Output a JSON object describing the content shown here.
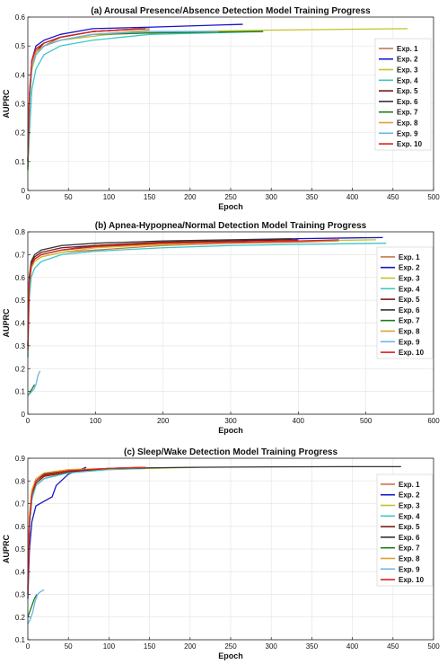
{
  "colors": {
    "Exp. 1": "#C8764A",
    "Exp. 2": "#1515C8",
    "Exp. 3": "#C4C22A",
    "Exp. 4": "#3CC8C8",
    "Exp. 5": "#7A1A1A",
    "Exp. 6": "#333333",
    "Exp. 7": "#1E7A1E",
    "Exp. 8": "#E0A030",
    "Exp. 9": "#6AB4E8",
    "Exp. 10": "#E01E1E"
  },
  "chart_data": [
    {
      "type": "line",
      "title": "(a) Arousal Presence/Absence Detection Model Training Progress",
      "xlabel": "Epoch",
      "ylabel": "AUPRC",
      "xlim": [
        0,
        500
      ],
      "ylim": [
        0,
        0.6
      ],
      "xticks": [
        0,
        50,
        100,
        150,
        200,
        250,
        300,
        350,
        400,
        450,
        500
      ],
      "yticks": [
        0,
        0.1,
        0.2,
        0.3,
        0.4,
        0.5,
        0.6
      ],
      "grid": true,
      "legend": "top-right",
      "series": [
        {
          "name": "Exp. 1",
          "x": [
            0,
            2,
            5,
            10,
            20,
            40,
            80,
            150
          ],
          "y": [
            0.08,
            0.3,
            0.42,
            0.47,
            0.5,
            0.53,
            0.55,
            0.56
          ]
        },
        {
          "name": "Exp. 2",
          "x": [
            0,
            2,
            5,
            10,
            20,
            40,
            80,
            150,
            265
          ],
          "y": [
            0.1,
            0.32,
            0.45,
            0.5,
            0.52,
            0.54,
            0.56,
            0.565,
            0.575
          ]
        },
        {
          "name": "Exp. 3",
          "x": [
            0,
            2,
            5,
            10,
            20,
            40,
            100,
            200,
            300,
            468
          ],
          "y": [
            0.08,
            0.3,
            0.42,
            0.47,
            0.5,
            0.52,
            0.54,
            0.55,
            0.555,
            0.56
          ]
        },
        {
          "name": "Exp. 4",
          "x": [
            0,
            2,
            5,
            10,
            20,
            40,
            80,
            150,
            290
          ],
          "y": [
            0.08,
            0.2,
            0.35,
            0.42,
            0.47,
            0.5,
            0.52,
            0.54,
            0.55
          ]
        },
        {
          "name": "Exp. 5",
          "x": [
            0,
            2,
            5,
            10,
            20,
            40,
            80,
            145
          ],
          "y": [
            0.1,
            0.33,
            0.44,
            0.48,
            0.51,
            0.53,
            0.55,
            0.56
          ]
        },
        {
          "name": "Exp. 6",
          "x": [
            0,
            2,
            5,
            10,
            20,
            40,
            80,
            140
          ],
          "y": [
            0.1,
            0.33,
            0.45,
            0.49,
            0.51,
            0.53,
            0.55,
            0.56
          ]
        },
        {
          "name": "Exp. 7",
          "x": [
            0,
            2,
            5,
            10,
            20,
            40,
            80,
            150,
            290
          ],
          "y": [
            0.07,
            0.3,
            0.44,
            0.48,
            0.5,
            0.52,
            0.54,
            0.545,
            0.55
          ]
        },
        {
          "name": "Exp. 8",
          "x": [
            0,
            2,
            5,
            10,
            20,
            40,
            80,
            150
          ],
          "y": [
            0.1,
            0.32,
            0.44,
            0.48,
            0.5,
            0.52,
            0.54,
            0.555
          ]
        },
        {
          "name": "Exp. 9",
          "x": [
            0,
            2,
            5,
            10,
            20,
            40,
            80,
            150,
            235
          ],
          "y": [
            0.1,
            0.3,
            0.43,
            0.47,
            0.5,
            0.52,
            0.54,
            0.55,
            0.55
          ]
        },
        {
          "name": "Exp. 10",
          "x": [
            0,
            2,
            5,
            10,
            20,
            40,
            80,
            140
          ],
          "y": [
            0.1,
            0.34,
            0.45,
            0.49,
            0.51,
            0.53,
            0.55,
            0.56
          ]
        }
      ]
    },
    {
      "type": "line",
      "title": "(b) Apnea-Hypopnea/Normal Detection Model Training Progress",
      "xlabel": "Epoch",
      "ylabel": "AUPRC",
      "xlim": [
        0,
        600
      ],
      "ylim": [
        0,
        0.8
      ],
      "xticks": [
        0,
        100,
        200,
        300,
        400,
        500,
        600
      ],
      "yticks": [
        0,
        0.1,
        0.2,
        0.3,
        0.4,
        0.5,
        0.6,
        0.7,
        0.8
      ],
      "grid": true,
      "legend": "right",
      "series": [
        {
          "name": "Exp. 1",
          "x": [
            0,
            2,
            5,
            10,
            20,
            50,
            100,
            200,
            300,
            400,
            460
          ],
          "y": [
            0.25,
            0.55,
            0.64,
            0.67,
            0.69,
            0.71,
            0.72,
            0.74,
            0.75,
            0.755,
            0.76
          ]
        },
        {
          "name": "Exp. 2",
          "x": [
            0,
            2,
            5,
            10,
            20,
            50,
            100,
            200,
            300,
            400,
            525
          ],
          "y": [
            0.3,
            0.58,
            0.65,
            0.68,
            0.7,
            0.72,
            0.74,
            0.75,
            0.76,
            0.77,
            0.775
          ]
        },
        {
          "name": "Exp. 3",
          "x": [
            0,
            2,
            5,
            10,
            20,
            50,
            100,
            200,
            300,
            400,
            515
          ],
          "y": [
            0.3,
            0.56,
            0.64,
            0.67,
            0.69,
            0.71,
            0.73,
            0.745,
            0.755,
            0.76,
            0.765
          ]
        },
        {
          "name": "Exp. 4",
          "x": [
            0,
            2,
            5,
            10,
            20,
            50,
            100,
            200,
            300,
            400,
            530
          ],
          "y": [
            0.25,
            0.5,
            0.6,
            0.64,
            0.67,
            0.7,
            0.715,
            0.73,
            0.74,
            0.745,
            0.75
          ]
        },
        {
          "name": "Exp. 5",
          "x": [
            0,
            2,
            5,
            10,
            20,
            50,
            100,
            200,
            300,
            400
          ],
          "y": [
            0.3,
            0.58,
            0.66,
            0.69,
            0.71,
            0.73,
            0.74,
            0.755,
            0.76,
            0.765
          ]
        },
        {
          "name": "Exp. 6",
          "x": [
            0,
            2,
            5,
            10,
            20,
            50,
            100,
            200,
            300,
            390
          ],
          "y": [
            0.3,
            0.6,
            0.67,
            0.7,
            0.72,
            0.74,
            0.75,
            0.76,
            0.765,
            0.77
          ]
        },
        {
          "name": "Exp. 7",
          "x": [
            0,
            2,
            4,
            6,
            8,
            10
          ],
          "y": [
            0.08,
            0.09,
            0.1,
            0.11,
            0.12,
            0.13
          ]
        },
        {
          "name": "Exp. 8",
          "x": [
            0,
            2,
            5,
            10,
            20,
            50,
            100,
            200,
            300,
            400
          ],
          "y": [
            0.3,
            0.57,
            0.65,
            0.68,
            0.7,
            0.72,
            0.735,
            0.75,
            0.755,
            0.76
          ]
        },
        {
          "name": "Exp. 9",
          "x": [
            0,
            3,
            6,
            9,
            12,
            15,
            18
          ],
          "y": [
            0.08,
            0.09,
            0.1,
            0.11,
            0.13,
            0.17,
            0.19
          ]
        },
        {
          "name": "Exp. 10",
          "x": [
            0,
            2,
            5,
            10,
            20,
            50,
            100,
            200,
            300,
            400,
            460
          ],
          "y": [
            0.28,
            0.57,
            0.65,
            0.68,
            0.7,
            0.72,
            0.735,
            0.75,
            0.755,
            0.76,
            0.765
          ]
        }
      ]
    },
    {
      "type": "line",
      "title": "(c) Sleep/Wake Detection Model Training Progress",
      "xlabel": "Epoch",
      "ylabel": "AUPRC",
      "xlim": [
        0,
        500
      ],
      "ylim": [
        0.1,
        0.9
      ],
      "xticks": [
        0,
        50,
        100,
        150,
        200,
        250,
        300,
        350,
        400,
        450,
        500
      ],
      "yticks": [
        0.1,
        0.2,
        0.3,
        0.4,
        0.5,
        0.6,
        0.7,
        0.8,
        0.9
      ],
      "grid": true,
      "legend": "right",
      "series": [
        {
          "name": "Exp. 1",
          "x": [
            0,
            2,
            5,
            10,
            20,
            50,
            100,
            145
          ],
          "y": [
            0.3,
            0.6,
            0.72,
            0.78,
            0.81,
            0.84,
            0.855,
            0.86
          ]
        },
        {
          "name": "Exp. 2",
          "x": [
            0,
            2,
            5,
            10,
            20,
            30,
            35,
            50,
            72
          ],
          "y": [
            0.28,
            0.5,
            0.62,
            0.69,
            0.71,
            0.73,
            0.78,
            0.83,
            0.86
          ]
        },
        {
          "name": "Exp. 3",
          "x": [
            0,
            2,
            5,
            10,
            20,
            50,
            100,
            150,
            210
          ],
          "y": [
            0.35,
            0.65,
            0.76,
            0.8,
            0.83,
            0.845,
            0.85,
            0.855,
            0.86
          ]
        },
        {
          "name": "Exp. 4",
          "x": [
            0,
            2,
            5,
            10,
            20,
            50,
            100,
            145
          ],
          "y": [
            0.3,
            0.6,
            0.72,
            0.78,
            0.81,
            0.835,
            0.85,
            0.855
          ]
        },
        {
          "name": "Exp. 5",
          "x": [
            0,
            2,
            5,
            10,
            20,
            50,
            100,
            145
          ],
          "y": [
            0.32,
            0.62,
            0.74,
            0.79,
            0.82,
            0.84,
            0.855,
            0.86
          ]
        },
        {
          "name": "Exp. 6",
          "x": [
            0,
            2,
            5,
            10,
            20,
            50,
            100,
            200,
            300,
            400,
            460
          ],
          "y": [
            0.33,
            0.63,
            0.75,
            0.8,
            0.83,
            0.845,
            0.855,
            0.86,
            0.862,
            0.863,
            0.863
          ]
        },
        {
          "name": "Exp. 7",
          "x": [
            0,
            2,
            5,
            8,
            11
          ],
          "y": [
            0.2,
            0.22,
            0.25,
            0.28,
            0.3
          ]
        },
        {
          "name": "Exp. 8",
          "x": [
            0,
            2,
            5,
            10,
            20,
            50,
            100,
            145
          ],
          "y": [
            0.33,
            0.64,
            0.76,
            0.81,
            0.835,
            0.85,
            0.855,
            0.86
          ]
        },
        {
          "name": "Exp. 9",
          "x": [
            0,
            3,
            6,
            9,
            12,
            15,
            20
          ],
          "y": [
            0.17,
            0.19,
            0.22,
            0.27,
            0.3,
            0.31,
            0.32
          ]
        },
        {
          "name": "Exp. 10",
          "x": [
            0,
            2,
            5,
            10,
            20,
            50,
            100,
            145
          ],
          "y": [
            0.3,
            0.62,
            0.74,
            0.8,
            0.825,
            0.845,
            0.855,
            0.86
          ]
        }
      ]
    }
  ]
}
